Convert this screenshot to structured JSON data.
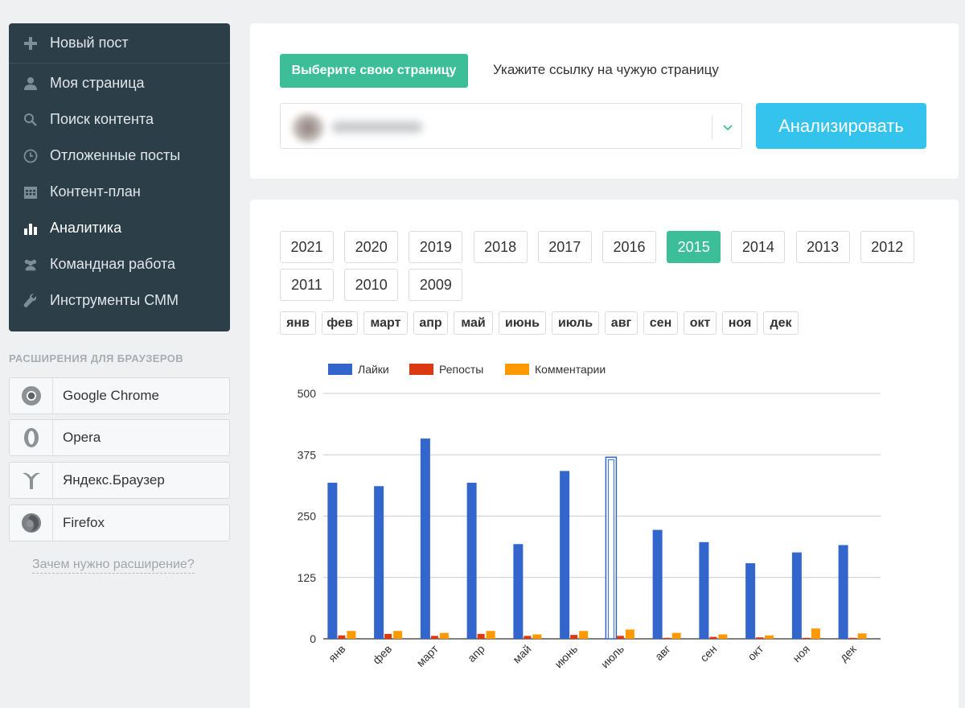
{
  "sidebar": {
    "items": [
      {
        "label": "Новый пост",
        "icon": "plus-icon"
      },
      {
        "label": "Моя страница",
        "icon": "user-icon"
      },
      {
        "label": "Поиск контента",
        "icon": "search-icon"
      },
      {
        "label": "Отложенные посты",
        "icon": "clock-icon"
      },
      {
        "label": "Контент-план",
        "icon": "calendar-icon"
      },
      {
        "label": "Аналитика",
        "icon": "bar-chart-icon"
      },
      {
        "label": "Командная работа",
        "icon": "users-icon"
      },
      {
        "label": "Инструменты СММ",
        "icon": "wrench-icon"
      }
    ],
    "active_index": 5
  },
  "extensions": {
    "title": "РАСШИРЕНИЯ ДЛЯ БРАУЗЕРОВ",
    "items": [
      {
        "label": "Google Chrome",
        "icon": "chrome-icon"
      },
      {
        "label": "Opera",
        "icon": "opera-icon"
      },
      {
        "label": "Яндекс.Браузер",
        "icon": "yandex-browser-icon"
      },
      {
        "label": "Firefox",
        "icon": "firefox-icon"
      }
    ],
    "why_link": "Зачем нужно расширение?"
  },
  "top": {
    "choose_label": "Выберите свою страницу",
    "other_link": "Укажите ссылку на чужую страницу",
    "analyze_label": "Анализировать"
  },
  "years": [
    "2021",
    "2020",
    "2019",
    "2018",
    "2017",
    "2016",
    "2015",
    "2014",
    "2013",
    "2012",
    "2011",
    "2010",
    "2009"
  ],
  "active_year": "2015",
  "months": [
    "янв",
    "фев",
    "март",
    "апр",
    "май",
    "июнь",
    "июль",
    "авг",
    "сен",
    "окт",
    "ноя",
    "дек"
  ],
  "colors": {
    "accent": "#3cbf98",
    "analyze": "#33c3ec",
    "likes": "#3366cc",
    "reposts": "#dc3912",
    "comments": "#ff9900"
  },
  "chart_data": {
    "type": "bar",
    "categories": [
      "янв",
      "фев",
      "март",
      "апр",
      "май",
      "июнь",
      "июль",
      "авг",
      "сен",
      "окт",
      "ноя",
      "дек"
    ],
    "series": [
      {
        "name": "Лайки",
        "values": [
          318,
          311,
          408,
          318,
          193,
          342,
          370,
          222,
          197,
          154,
          176,
          191
        ]
      },
      {
        "name": "Репосты",
        "values": [
          7,
          10,
          6,
          10,
          6,
          8,
          6,
          2,
          4,
          3,
          2,
          2
        ]
      },
      {
        "name": "Комментарии",
        "values": [
          16,
          16,
          12,
          16,
          9,
          16,
          19,
          12,
          9,
          7,
          21,
          11
        ]
      }
    ],
    "ylim": [
      0,
      500
    ],
    "yticks": [
      0,
      125,
      250,
      375,
      500
    ],
    "highlighted_index": 6,
    "grid": true,
    "legend_position": "top"
  }
}
